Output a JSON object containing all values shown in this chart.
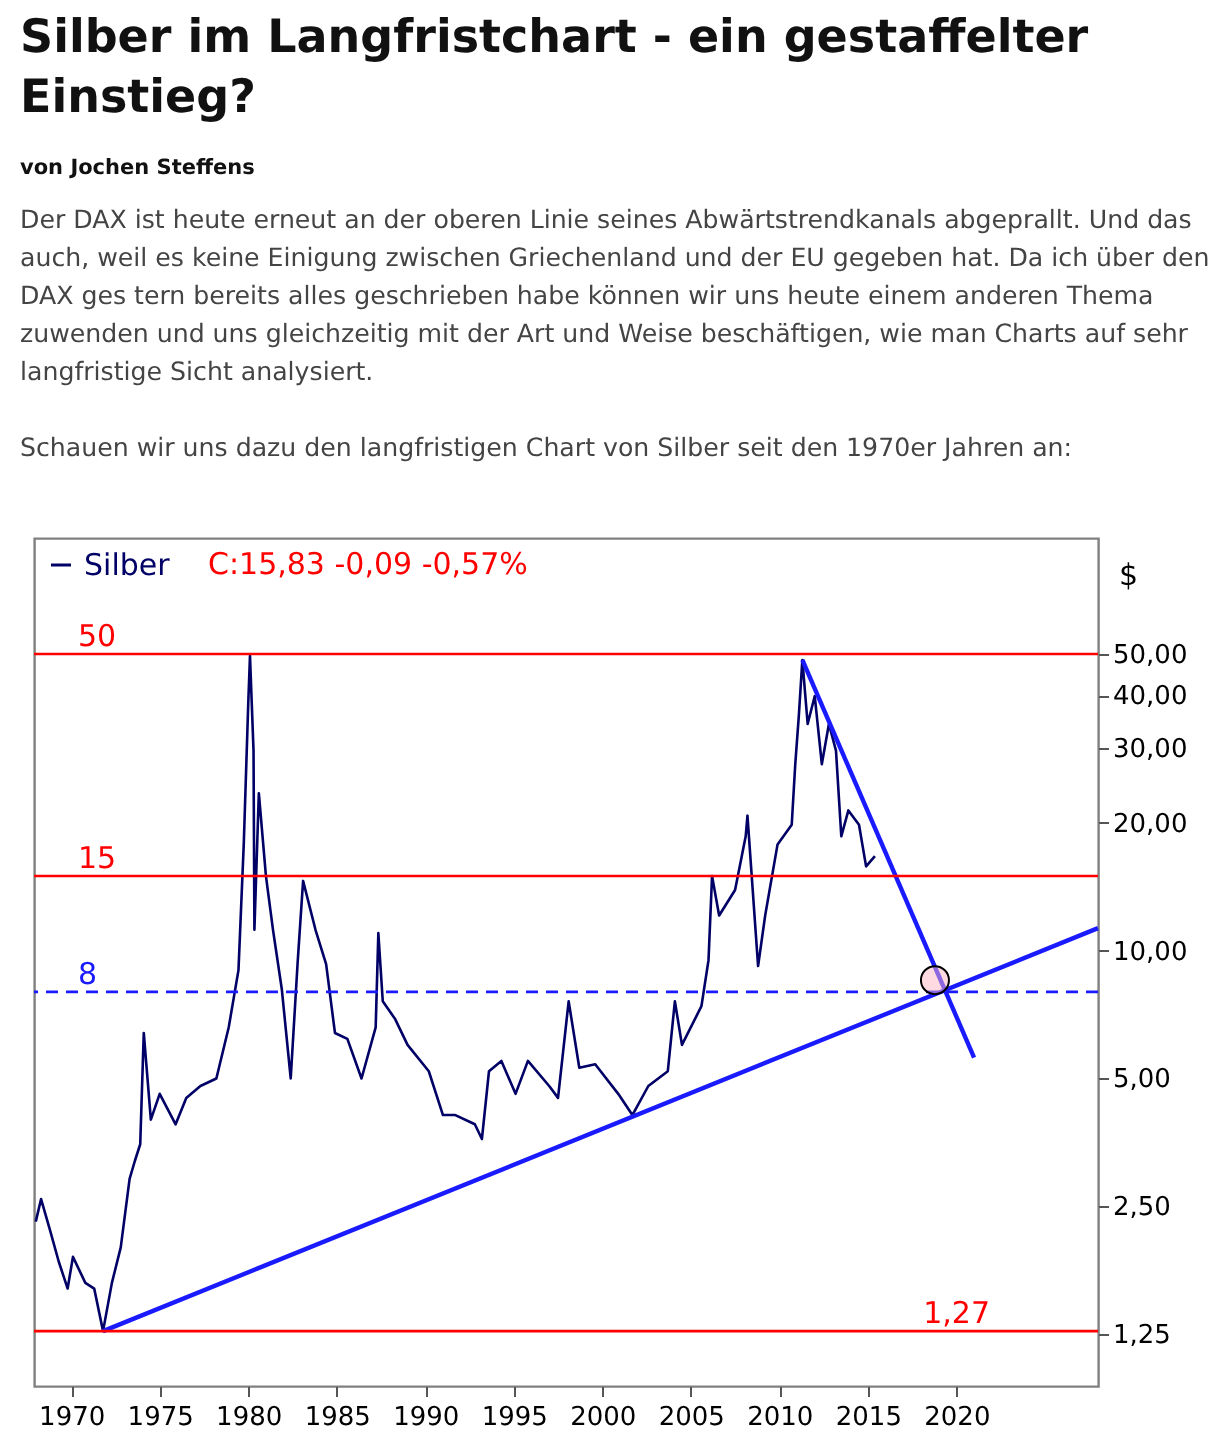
{
  "chart_data": {
    "type": "line",
    "title": "Silber im Langfristchart - ein gestaffelter Einstieg?",
    "subtitle": "von Jochen Steffens",
    "annotations": [
      "Der DAX ist heute erneut an der oberen Linie seines Abwärtstrendkanals abgeprallt. Und das auch, weil es keine Einigung zwischen Griechenland und der EU gegeben hat. Da ich über den DAX ges tern bereits alles geschrieben habe können wir uns heute einem anderen Thema zuwenden und uns gleichzeitig mit der Art und Weise beschäftigen, wie man Charts auf sehr langfristige Sicht analysiert.",
      "Schauen wir uns dazu den langfristigen Chart von Silber seit den 1970er Jahren an:",
      "C:15,83 -0,09 -0,57%"
    ],
    "ylabel": "$",
    "log": "y",
    "grid": false,
    "legend": "top left",
    "marker": "none",
    "line_style": "solid",
    "xlim": [
      1967.9,
      2028
    ],
    "xticks": [
      1970,
      1975,
      1980,
      1985,
      1990,
      1995,
      2000,
      2005,
      2010,
      2015,
      2020
    ],
    "ylim": [
      0.943,
      93.8
    ],
    "yticks": [
      {
        "value": 1.25,
        "label": "1,25"
      },
      {
        "value": 2.5,
        "label": "2,50"
      },
      {
        "value": 5,
        "label": "5,00"
      },
      {
        "value": 10,
        "label": "10,00"
      },
      {
        "value": 20,
        "label": "20,00"
      },
      {
        "value": 30,
        "label": "30,00"
      },
      {
        "value": 40,
        "label": "40,00"
      },
      {
        "value": 50,
        "label": "50,00"
      }
    ],
    "series": [
      {
        "name": "Silber",
        "color": "#000066",
        "x": [
          1968.0,
          1968.3,
          1968.8,
          1969.3,
          1969.8,
          1970.1,
          1970.8,
          1971.3,
          1971.8,
          1972.3,
          1972.8,
          1973.3,
          1973.6,
          1973.9,
          1974.1,
          1974.5,
          1975.0,
          1975.9,
          1976.5,
          1977.3,
          1978.2,
          1978.9,
          1979.45,
          1979.75,
          1980.0,
          1980.1,
          1980.3,
          1980.35,
          1980.6,
          1981.0,
          1981.4,
          1981.9,
          1982.4,
          1982.8,
          1983.1,
          1983.8,
          1984.4,
          1984.9,
          1985.6,
          1986.4,
          1987.2,
          1987.35,
          1987.6,
          1988.3,
          1989.0,
          1990.2,
          1991.0,
          1991.7,
          1992.8,
          1993.2,
          1993.6,
          1994.3,
          1995.1,
          1995.8,
          1997.0,
          1997.5,
          1998.1,
          1998.7,
          1999.6,
          2000.9,
          2001.7,
          2002.6,
          2003.7,
          2004.1,
          2004.5,
          2005.6,
          2006.0,
          2006.2,
          2006.6,
          2007.5,
          2008.1,
          2008.2,
          2008.8,
          2009.2,
          2009.9,
          2010.7,
          2010.9,
          2011.1,
          2011.3,
          2011.6,
          2012.0,
          2012.4,
          2012.8,
          2013.2,
          2013.5,
          2013.9,
          2014.5,
          2014.9,
          2015.4
        ],
        "values": [
          2.3,
          2.6,
          2.2,
          1.85,
          1.6,
          1.9,
          1.65,
          1.6,
          1.27,
          1.65,
          2.0,
          2.9,
          3.2,
          3.5,
          6.4,
          4.0,
          4.6,
          3.9,
          4.5,
          4.8,
          5.0,
          6.6,
          9.0,
          17.9,
          38,
          49.5,
          29.6,
          11.2,
          23.5,
          15,
          11.2,
          8.1,
          5.0,
          9.5,
          14.6,
          11.2,
          9.3,
          6.4,
          6.2,
          5.0,
          6.6,
          11.0,
          7.6,
          6.9,
          6.0,
          5.2,
          4.1,
          4.1,
          3.9,
          3.6,
          5.2,
          5.5,
          4.6,
          5.5,
          4.8,
          4.5,
          7.6,
          5.3,
          5.4,
          4.6,
          4.1,
          4.8,
          5.2,
          7.6,
          6.0,
          7.4,
          9.5,
          15,
          12.1,
          13.9,
          18.6,
          20.8,
          9.2,
          12.1,
          17.8,
          19.8,
          27.5,
          35.7,
          48.4,
          34.2,
          39.8,
          27.5,
          34.2,
          29.6,
          18.6,
          21.4,
          19.8,
          15.8,
          16.7
        ]
      },
      {
        "color": "#1a1aff",
        "x": [
          1971.8,
          2028
        ],
        "values": [
          1.27,
          11.3
        ]
      },
      {
        "color": "#1a1aff",
        "x": [
          2011.3,
          2021.0
        ],
        "values": [
          48.4,
          5.6
        ]
      }
    ],
    "ref_lines": [
      {
        "axis": "y",
        "value": 50,
        "label": "50",
        "color": "#ff0000",
        "line_style": "solid"
      },
      {
        "axis": "y",
        "value": 15,
        "label": "15",
        "color": "#ff0000",
        "line_style": "solid"
      },
      {
        "axis": "y",
        "value": 8,
        "label": "8",
        "color": "#1a1aff",
        "line_style": "dashed"
      },
      {
        "axis": "y",
        "value": 1.27,
        "label": "1,27",
        "color": "#ff0000",
        "line_style": "solid"
      }
    ]
  }
}
